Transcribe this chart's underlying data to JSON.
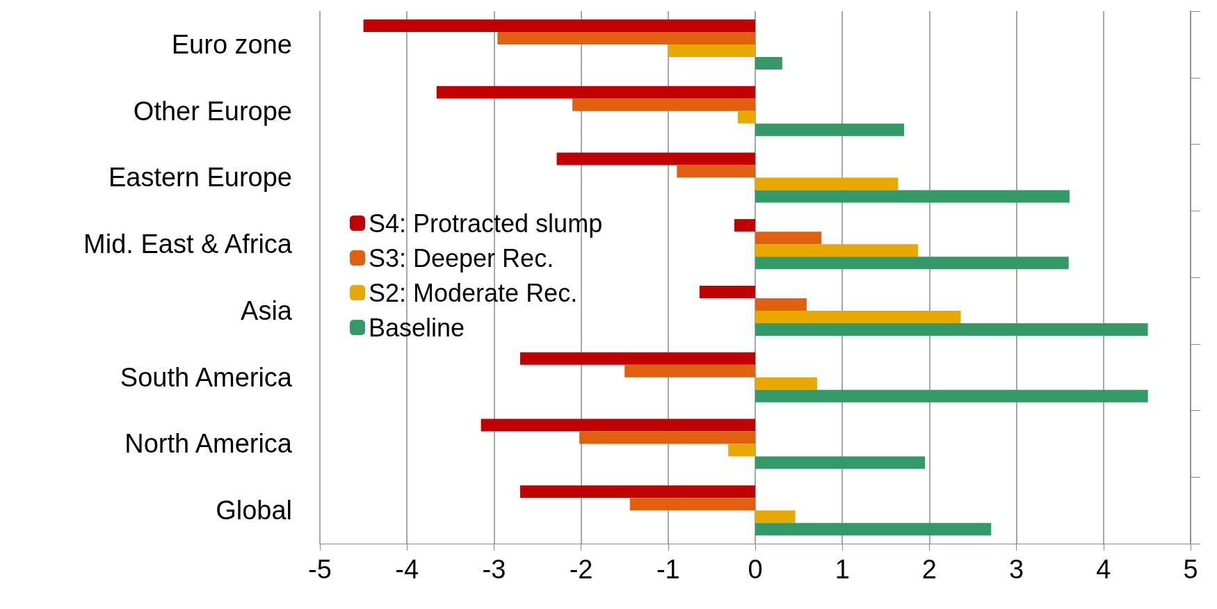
{
  "chart_data": {
    "type": "bar",
    "orientation": "horizontal",
    "categories": [
      "Euro zone",
      "Other Europe",
      "Eastern Europe",
      "Mid. East & Africa",
      "Asia",
      "South America",
      "North America",
      "Global"
    ],
    "series": [
      {
        "name": "S4: Protracted slump",
        "color": "#c00000",
        "values": [
          -4.5,
          -3.66,
          -2.28,
          -0.24,
          -0.64,
          -2.7,
          -3.15,
          -2.7
        ]
      },
      {
        "name": "S3: Deeper Rec.",
        "color": "#e0600f",
        "values": [
          -2.96,
          -2.1,
          -0.9,
          0.76,
          0.59,
          -1.5,
          -2.02,
          -1.44
        ]
      },
      {
        "name": "S2: Moderate Rec.",
        "color": "#e8a800",
        "values": [
          -1.0,
          -0.2,
          1.64,
          1.87,
          2.36,
          0.71,
          -0.31,
          0.46
        ]
      },
      {
        "name": "Baseline",
        "color": "#339966",
        "values": [
          0.31,
          1.71,
          3.61,
          3.6,
          4.51,
          4.51,
          1.95,
          2.71
        ]
      }
    ],
    "xlim": [
      -5,
      5
    ],
    "xticks": [
      -5,
      -4,
      -3,
      -2,
      -1,
      0,
      1,
      2,
      3,
      4,
      5
    ],
    "grid": "x",
    "legend": "left"
  }
}
